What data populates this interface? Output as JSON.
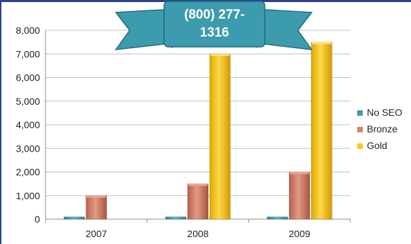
{
  "banner": {
    "line1": "(800) 277-",
    "line2": "1316"
  },
  "colors": {
    "no_seo": "#4a9bb0",
    "bronze": "#d9826a",
    "gold": "#ffc81a",
    "banner": "#3d9bae",
    "banner_dark": "#1f6d80",
    "grid": "#bfbfbf"
  },
  "chart_data": {
    "type": "bar",
    "categories": [
      "2007",
      "2008",
      "2009"
    ],
    "series": [
      {
        "name": "No SEO",
        "values": [
          100,
          100,
          100
        ]
      },
      {
        "name": "Bronze",
        "values": [
          1000,
          1500,
          2000
        ]
      },
      {
        "name": "Gold",
        "values": [
          0,
          7000,
          7500
        ]
      }
    ],
    "ylim": [
      0,
      8000
    ],
    "yticks": [
      "0",
      "1,000",
      "2,000",
      "3,000",
      "4,000",
      "5,000",
      "6,000",
      "7,000",
      "8,000"
    ],
    "grid": true,
    "legend_position": "right"
  }
}
